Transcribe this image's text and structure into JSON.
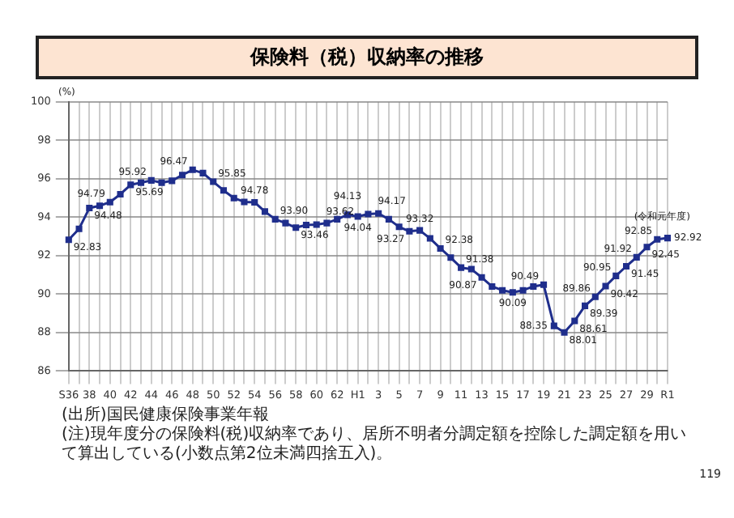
{
  "chart_data": {
    "type": "line",
    "title": "保険料（税）収納率の推移",
    "ylabel": "(%)",
    "categories": [
      "S36",
      null,
      "38",
      null,
      "40",
      null,
      "42",
      null,
      "44",
      null,
      "46",
      null,
      "48",
      null,
      "50",
      null,
      "52",
      null,
      "54",
      null,
      "56",
      null,
      "58",
      null,
      "60",
      null,
      "62",
      null,
      "H1",
      null,
      "3",
      null,
      "5",
      null,
      "7",
      null,
      "9",
      null,
      "11",
      null,
      "13",
      null,
      "15",
      null,
      "17",
      null,
      "19",
      null,
      "21",
      null,
      "23",
      null,
      "25",
      null,
      "27",
      null,
      "29",
      null,
      "R1"
    ],
    "series": [
      {
        "color": "#1f2e8c",
        "values": [
          92.83,
          93.4,
          94.48,
          94.6,
          94.79,
          95.2,
          95.69,
          95.8,
          95.92,
          95.8,
          95.9,
          96.2,
          96.47,
          96.3,
          95.85,
          95.4,
          95.0,
          94.8,
          94.78,
          94.3,
          93.9,
          93.7,
          93.46,
          93.6,
          93.62,
          93.7,
          93.9,
          94.13,
          94.04,
          94.17,
          94.2,
          93.9,
          93.5,
          93.27,
          93.32,
          92.9,
          92.38,
          91.9,
          91.38,
          91.3,
          90.87,
          90.4,
          90.2,
          90.09,
          90.2,
          90.4,
          90.49,
          88.35,
          88.01,
          88.61,
          89.39,
          89.86,
          90.42,
          90.95,
          91.45,
          91.92,
          92.45,
          92.85,
          92.92
        ],
        "value_labels": [
          "92.83",
          null,
          "94.48",
          null,
          "94.79",
          null,
          "95.69",
          null,
          "95.92",
          null,
          null,
          null,
          "96.47",
          null,
          "95.85",
          null,
          null,
          null,
          "94.78",
          null,
          "93.90",
          null,
          "93.46",
          null,
          "93.62",
          null,
          null,
          "94.13",
          "94.04",
          "94.17",
          null,
          null,
          null,
          "93.27",
          "93.32",
          null,
          "92.38",
          null,
          "91.38",
          null,
          "90.87",
          null,
          null,
          "90.09",
          null,
          null,
          "90.49",
          "88.35",
          "88.01",
          "88.61",
          "89.39",
          "89.86",
          "90.42",
          "90.95",
          "91.45",
          "91.92",
          "92.45",
          "92.85",
          "92.92"
        ]
      }
    ],
    "ylim": [
      86,
      100
    ],
    "yticks": [
      86,
      88,
      90,
      92,
      94,
      96,
      98,
      100
    ],
    "grid": true,
    "legend": false,
    "marker": "square",
    "line_style": "solid",
    "annotations": [
      "(令和元年度)",
      "(出所)国民健康保険事業年報",
      "(注)現年度分の保険料(税)収納率であり、居所不明者分調定額を控除した調定額を用いて算出している(小数点第2位未満四捨五入)。",
      "119"
    ]
  }
}
